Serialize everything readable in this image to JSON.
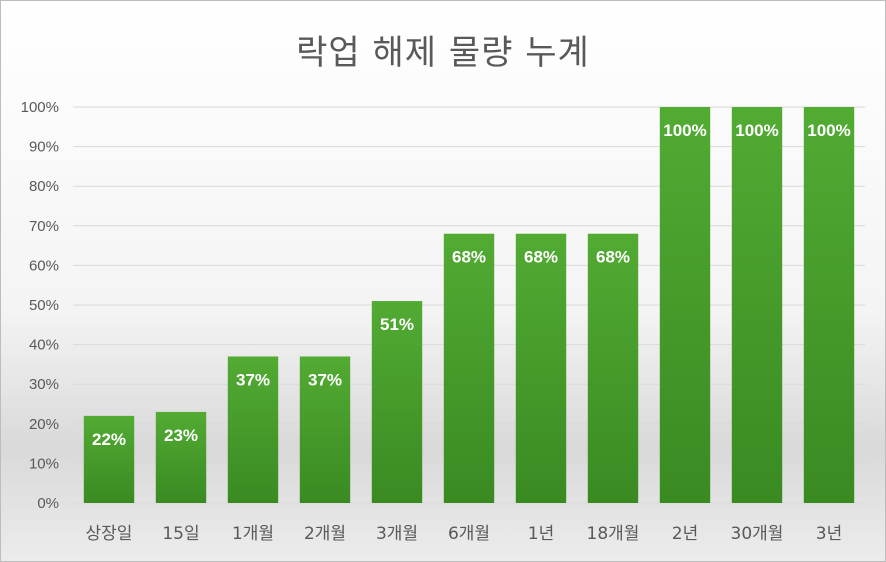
{
  "chart_data": {
    "type": "bar",
    "title": "락업 해제 물량 누계",
    "categories": [
      "상장일",
      "15일",
      "1개월",
      "2개월",
      "3개월",
      "6개월",
      "1년",
      "18개월",
      "2년",
      "30개월",
      "3년"
    ],
    "values": [
      22,
      23,
      37,
      37,
      51,
      68,
      68,
      68,
      100,
      100,
      100
    ],
    "data_labels": [
      "22%",
      "23%",
      "37%",
      "37%",
      "51%",
      "68%",
      "68%",
      "68%",
      "100%",
      "100%",
      "100%"
    ],
    "yticks": [
      "0%",
      "10%",
      "20%",
      "30%",
      "40%",
      "50%",
      "60%",
      "70%",
      "80%",
      "90%",
      "100%"
    ],
    "ylim": [
      0,
      100
    ],
    "grid": true,
    "colors": {
      "bar_top": "#52ab33",
      "bar_bottom": "#3a8a22",
      "grid": "#d9d9d9"
    }
  }
}
